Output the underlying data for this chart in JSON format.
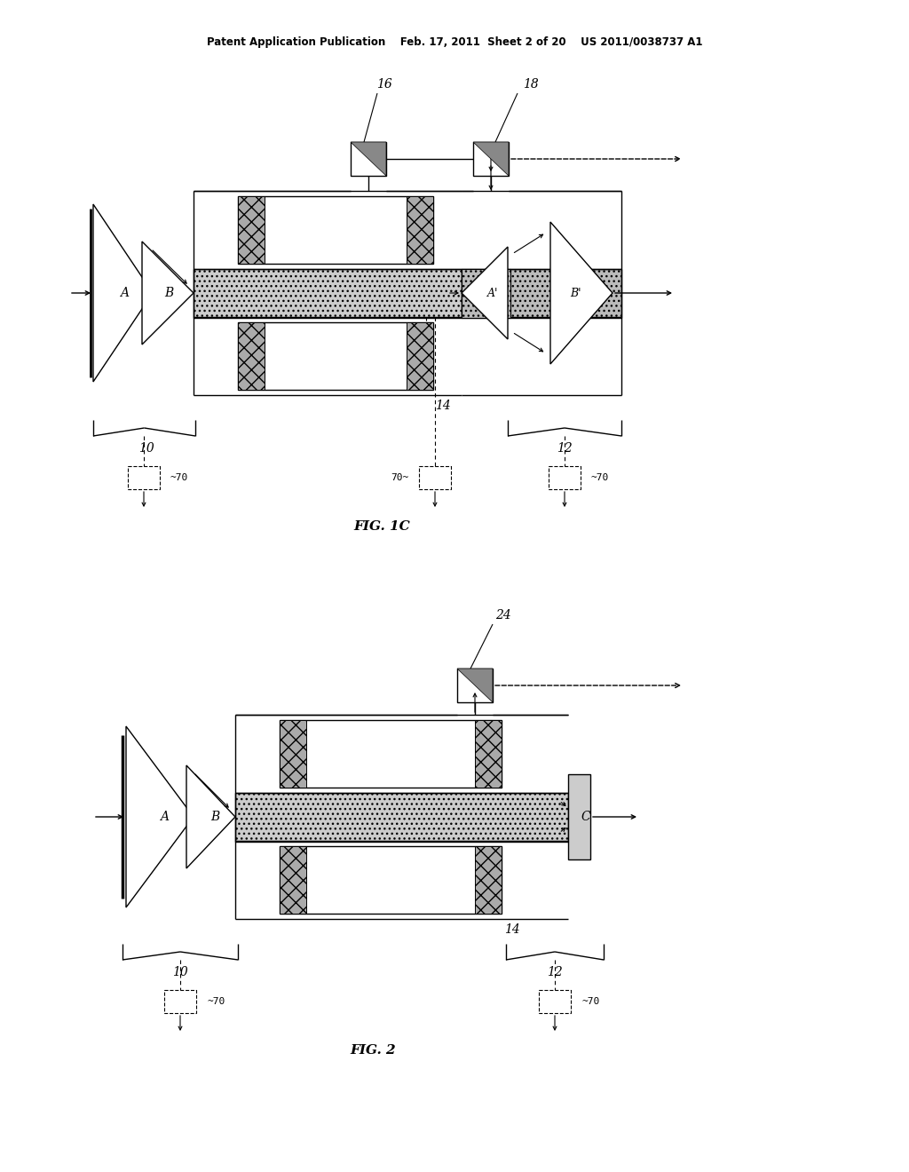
{
  "bg_color": "#ffffff",
  "header_text": "Patent Application Publication    Feb. 17, 2011  Sheet 2 of 20    US 2011/0038737 A1",
  "fig1c_label": "FIG. 1C",
  "fig2_label": "FIG. 2"
}
